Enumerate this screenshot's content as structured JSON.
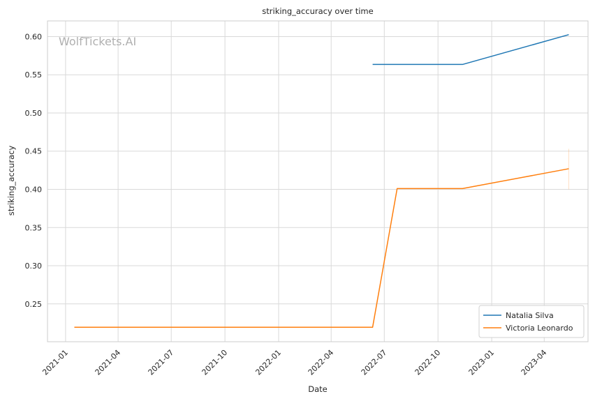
{
  "chart_data": {
    "type": "line",
    "title": "striking_accuracy over time",
    "xlabel": "Date",
    "ylabel": "striking_accuracy",
    "watermark": "WolfTickets.AI",
    "x_ticks": [
      "2021-01",
      "2021-04",
      "2021-07",
      "2021-10",
      "2022-01",
      "2022-04",
      "2022-07",
      "2022-10",
      "2023-01",
      "2023-04"
    ],
    "y_ticks": [
      0.25,
      0.3,
      0.35,
      0.4,
      0.45,
      0.5,
      0.55,
      0.6
    ],
    "xlim": [
      "2020-12-01",
      "2023-06-15"
    ],
    "ylim": [
      0.2005,
      0.6205
    ],
    "grid": true,
    "legend_position": "lower-right",
    "series": [
      {
        "name": "Natalia Silva",
        "color": "#1f77b4",
        "points": [
          {
            "x": "2022-06-11",
            "y": 0.5635
          },
          {
            "x": "2022-11-12",
            "y": 0.5635
          },
          {
            "x": "2023-05-13",
            "y": 0.6025
          }
        ]
      },
      {
        "name": "Victoria Leonardo",
        "color": "#ff7f0e",
        "points": [
          {
            "x": "2021-01-16",
            "y": 0.2195
          },
          {
            "x": "2022-06-11",
            "y": 0.2195
          },
          {
            "x": "2022-07-23",
            "y": 0.401
          },
          {
            "x": "2022-11-12",
            "y": 0.401
          },
          {
            "x": "2023-05-13",
            "y": 0.427
          }
        ]
      }
    ]
  }
}
